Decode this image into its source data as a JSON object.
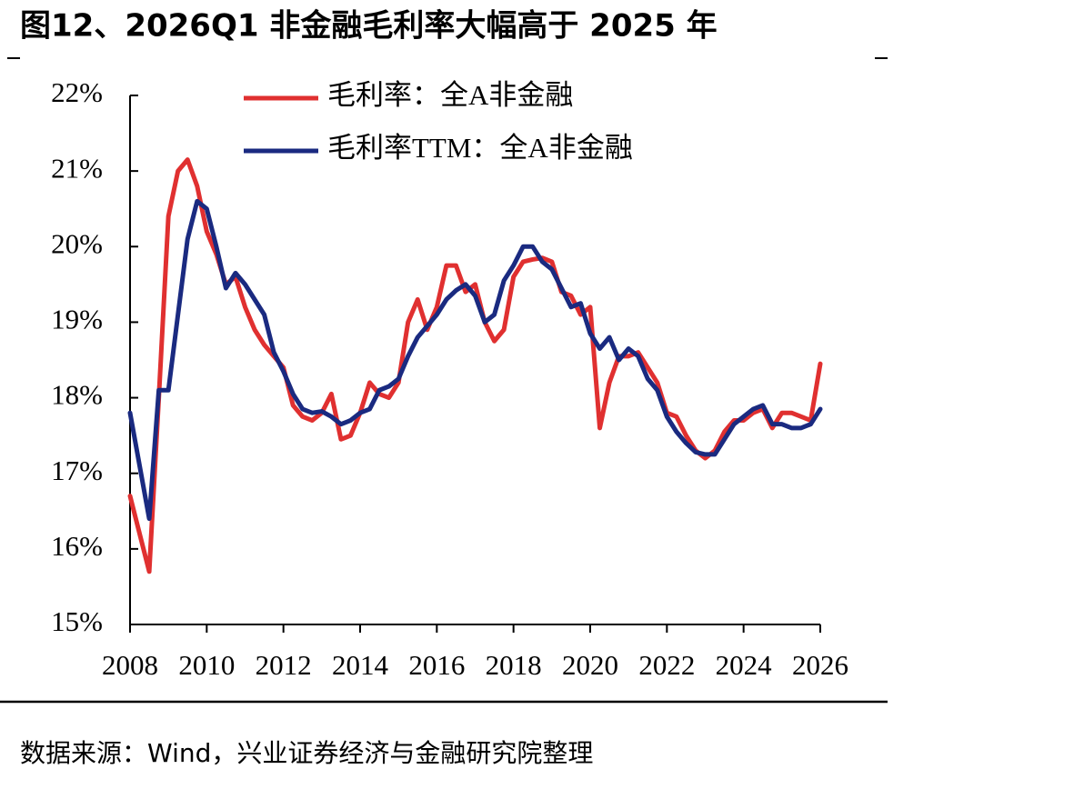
{
  "chart_data": {
    "type": "line",
    "title": "图12、2026Q1 非金融毛利率大幅高于 2025 年",
    "source": "数据来源：Wind，兴业证券经济与金融研究院整理",
    "x": [
      2008,
      2008.25,
      2008.5,
      2008.75,
      2009,
      2009.25,
      2009.5,
      2009.75,
      2010,
      2010.25,
      2010.5,
      2010.75,
      2011,
      2011.25,
      2011.5,
      2011.75,
      2012,
      2012.25,
      2012.5,
      2012.75,
      2013,
      2013.25,
      2013.5,
      2013.75,
      2014,
      2014.25,
      2014.5,
      2014.75,
      2015,
      2015.25,
      2015.5,
      2015.75,
      2016,
      2016.25,
      2016.5,
      2016.75,
      2017,
      2017.25,
      2017.5,
      2017.75,
      2018,
      2018.25,
      2018.5,
      2018.75,
      2019,
      2019.25,
      2019.5,
      2019.75,
      2020,
      2020.25,
      2020.5,
      2020.75,
      2021,
      2021.25,
      2021.5,
      2021.75,
      2022,
      2022.25,
      2022.5,
      2022.75,
      2023,
      2023.25,
      2023.5,
      2023.75,
      2024,
      2024.25,
      2024.5,
      2024.75,
      2025,
      2025.25,
      2025.5,
      2025.75,
      2026
    ],
    "series": [
      {
        "name": "毛利率：全A非金融",
        "color": "#e03030",
        "values": [
          16.7,
          16.2,
          15.7,
          18.0,
          20.4,
          21.0,
          21.15,
          20.8,
          20.2,
          19.9,
          19.5,
          19.6,
          19.2,
          18.9,
          18.7,
          18.55,
          18.4,
          17.9,
          17.75,
          17.7,
          17.8,
          18.05,
          17.45,
          17.5,
          17.8,
          18.2,
          18.05,
          18.0,
          18.2,
          19.0,
          19.3,
          18.9,
          19.2,
          19.75,
          19.75,
          19.4,
          19.5,
          19.0,
          18.75,
          18.9,
          19.6,
          19.8,
          19.83,
          19.85,
          19.8,
          19.4,
          19.35,
          19.1,
          19.2,
          17.6,
          18.2,
          18.55,
          18.55,
          18.6,
          18.4,
          18.2,
          17.8,
          17.75,
          17.5,
          17.3,
          17.2,
          17.3,
          17.55,
          17.7,
          17.7,
          17.8,
          17.85,
          17.6,
          17.8,
          17.8,
          17.75,
          17.7,
          18.45
        ]
      },
      {
        "name": "毛利率TTM：全A非金融",
        "color": "#1a2a80",
        "values": [
          17.8,
          17.1,
          16.4,
          18.1,
          18.1,
          19.1,
          20.1,
          20.6,
          20.5,
          20.0,
          19.45,
          19.65,
          19.5,
          19.3,
          19.1,
          18.6,
          18.35,
          18.05,
          17.85,
          17.8,
          17.82,
          17.75,
          17.65,
          17.7,
          17.8,
          17.85,
          18.1,
          18.15,
          18.25,
          18.55,
          18.8,
          18.95,
          19.1,
          19.3,
          19.42,
          19.5,
          19.35,
          19.0,
          19.1,
          19.55,
          19.75,
          20.0,
          20.0,
          19.8,
          19.7,
          19.45,
          19.2,
          19.25,
          18.85,
          18.65,
          18.8,
          18.5,
          18.65,
          18.55,
          18.25,
          18.1,
          17.75,
          17.55,
          17.4,
          17.28,
          17.25,
          17.25,
          17.45,
          17.65,
          17.75,
          17.85,
          17.9,
          17.65,
          17.65,
          17.6,
          17.6,
          17.65,
          17.85
        ]
      }
    ],
    "xlim": [
      2008,
      2026
    ],
    "xticks": [
      2008,
      2010,
      2012,
      2014,
      2016,
      2018,
      2020,
      2022,
      2024,
      2026
    ],
    "ylim": [
      15,
      22
    ],
    "yticks": [
      {
        "value": 15,
        "label": "15%"
      },
      {
        "value": 16,
        "label": "16%"
      },
      {
        "value": 17,
        "label": "17%"
      },
      {
        "value": 18,
        "label": "18%"
      },
      {
        "value": 19,
        "label": "19%"
      },
      {
        "value": 20,
        "label": "20%"
      },
      {
        "value": 21,
        "label": "21%"
      },
      {
        "value": 22,
        "label": "22%"
      }
    ],
    "grid": false,
    "legend": "upper left"
  }
}
